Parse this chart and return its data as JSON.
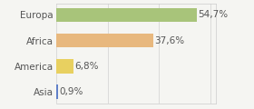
{
  "categories": [
    "Europa",
    "Africa",
    "America",
    "Asia"
  ],
  "values": [
    54.7,
    37.6,
    6.8,
    0.9
  ],
  "labels": [
    "54,7%",
    "37,6%",
    "6,8%",
    "0,9%"
  ],
  "bar_colors": [
    "#a8c47a",
    "#e8b87e",
    "#e8d060",
    "#6080c8"
  ],
  "background_color": "#f5f5f2",
  "xlim": [
    0,
    62
  ],
  "bar_height": 0.55,
  "label_fontsize": 7.5,
  "tick_fontsize": 7.5
}
